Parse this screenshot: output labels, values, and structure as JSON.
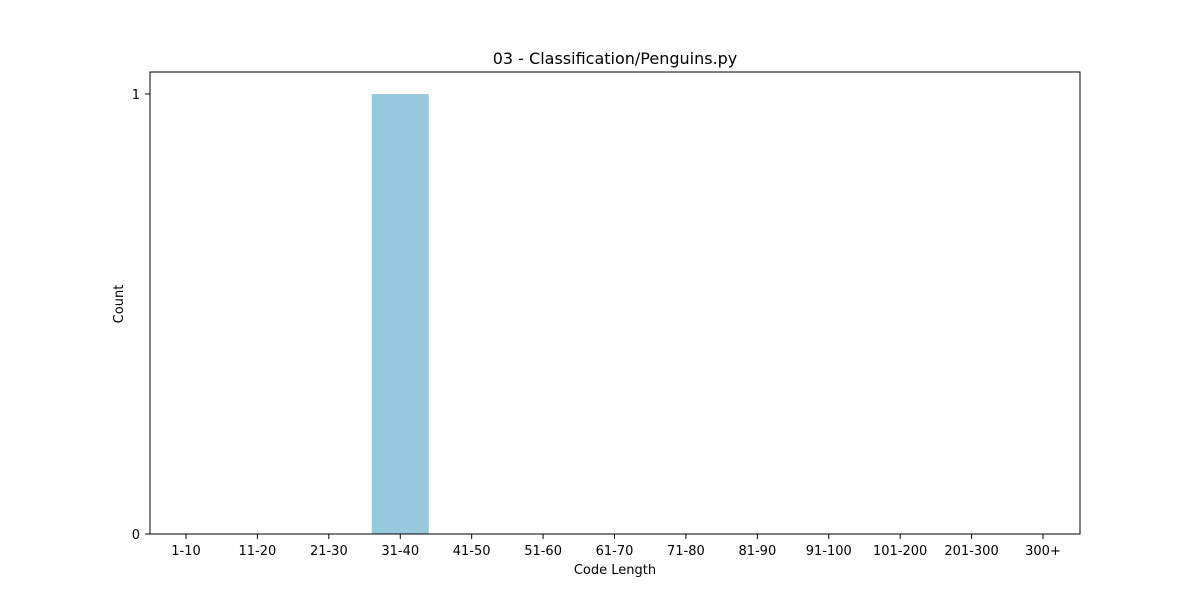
{
  "chart_data": {
    "type": "bar",
    "title": "03 - Classification/Penguins.py",
    "xlabel": "Code Length",
    "ylabel": "Count",
    "categories": [
      "1-10",
      "11-20",
      "21-30",
      "31-40",
      "41-50",
      "51-60",
      "61-70",
      "71-80",
      "81-90",
      "91-100",
      "101-200",
      "201-300",
      "300+"
    ],
    "values": [
      0,
      0,
      0,
      1,
      0,
      0,
      0,
      0,
      0,
      0,
      0,
      0,
      0
    ],
    "y_ticks": [
      0,
      1
    ],
    "ylim": [
      0,
      1
    ],
    "bar_color": "#96c8de",
    "grid": false,
    "legend": "none"
  }
}
